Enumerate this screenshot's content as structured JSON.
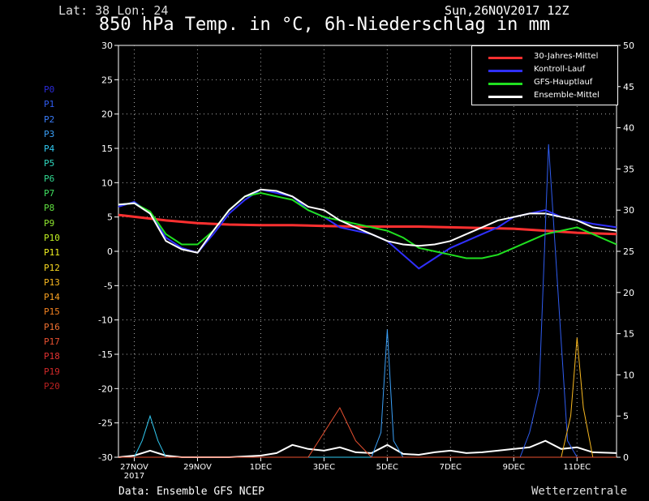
{
  "header": {
    "location": "Lat: 38 Lon: 24",
    "datetime": "Sun,26NOV2017 12Z",
    "title": "850 hPa Temp. in °C, 6h-Niederschlag in mm"
  },
  "footer": {
    "data_source": "Data: Ensemble GFS NCEP",
    "brand": "Wetterzentrale"
  },
  "members": [
    {
      "label": "P0",
      "color": "#2a2ad8"
    },
    {
      "label": "P1",
      "color": "#2f5cf0"
    },
    {
      "label": "P2",
      "color": "#3a7cf8"
    },
    {
      "label": "P3",
      "color": "#3aa0f8"
    },
    {
      "label": "P4",
      "color": "#30c8f0"
    },
    {
      "label": "P5",
      "color": "#30d8c0"
    },
    {
      "label": "P6",
      "color": "#30d890"
    },
    {
      "label": "P7",
      "color": "#40e060"
    },
    {
      "label": "P8",
      "color": "#60e040"
    },
    {
      "label": "P9",
      "color": "#90e830"
    },
    {
      "label": "P10",
      "color": "#c0f020"
    },
    {
      "label": "P11",
      "color": "#f0f020"
    },
    {
      "label": "P12",
      "color": "#f8d820"
    },
    {
      "label": "P13",
      "color": "#f8b820"
    },
    {
      "label": "P14",
      "color": "#f8a020"
    },
    {
      "label": "P15",
      "color": "#f08020"
    },
    {
      "label": "P16",
      "color": "#f07030"
    },
    {
      "label": "P17",
      "color": "#e85030"
    },
    {
      "label": "P18",
      "color": "#e03030"
    },
    {
      "label": "P19",
      "color": "#d02828"
    },
    {
      "label": "P20",
      "color": "#b82020"
    }
  ],
  "chart_data": {
    "type": "line",
    "title": "850 hPa Temp. in °C, 6h-Niederschlag in mm",
    "x_ticks": [
      {
        "day": 1,
        "label": "27NOV",
        "label2": "2017"
      },
      {
        "day": 3,
        "label": "29NOV"
      },
      {
        "day": 5,
        "label": "1DEC"
      },
      {
        "day": 7,
        "label": "3DEC"
      },
      {
        "day": 9,
        "label": "5DEC"
      },
      {
        "day": 11,
        "label": "7DEC"
      },
      {
        "day": 13,
        "label": "9DEC"
      },
      {
        "day": 15,
        "label": "11DEC"
      }
    ],
    "xlim": [
      0.5,
      16.25
    ],
    "y_left": {
      "unit": "°C",
      "ylim": [
        -30,
        30
      ],
      "ticks": [
        30,
        25,
        20,
        15,
        10,
        5,
        0,
        -5,
        -10,
        -15,
        -20,
        -25,
        -30
      ]
    },
    "y_right": {
      "unit": "mm",
      "ylim": [
        0,
        50
      ],
      "ticks": [
        50,
        45,
        40,
        35,
        30,
        25,
        20,
        15,
        10,
        5,
        0
      ]
    },
    "grid": true,
    "legend_position": "top-right",
    "series": [
      {
        "name": "30-Jahres-Mittel",
        "axis": "left",
        "color": "#ff3030",
        "x": [
          0.5,
          2,
          3,
          4,
          5,
          6,
          7,
          8,
          9,
          10,
          11,
          12,
          13,
          14,
          15,
          16.25
        ],
        "y": [
          5.3,
          4.5,
          4.1,
          3.9,
          3.8,
          3.8,
          3.7,
          3.6,
          3.6,
          3.6,
          3.5,
          3.4,
          3.3,
          3.0,
          2.7,
          2.5
        ]
      },
      {
        "name": "Kontroll-Lauf",
        "axis": "left",
        "color": "#3030ff",
        "x": [
          0.5,
          1,
          1.5,
          2,
          2.5,
          3,
          3.5,
          4,
          4.5,
          5,
          5.5,
          6,
          6.5,
          7,
          7.5,
          8,
          8.5,
          9,
          9.5,
          10,
          10.5,
          11,
          11.5,
          12,
          12.5,
          13,
          13.5,
          14,
          14.5,
          15,
          15.5,
          16.25
        ],
        "y": [
          6.5,
          7.2,
          5.5,
          2.0,
          0.5,
          -0.2,
          2.5,
          5.5,
          7.5,
          9.0,
          8.5,
          8.0,
          6.0,
          5.0,
          3.5,
          3.0,
          2.5,
          1.5,
          -0.5,
          -2.5,
          -1.0,
          0.5,
          1.5,
          2.5,
          3.5,
          5.0,
          5.5,
          6.0,
          5.0,
          4.5,
          4.0,
          3.5
        ]
      },
      {
        "name": "GFS-Hauptlauf",
        "axis": "left",
        "color": "#20e020",
        "x": [
          0.5,
          1,
          1.5,
          2,
          2.5,
          3,
          3.5,
          4,
          4.5,
          5,
          5.5,
          6,
          6.5,
          7,
          7.5,
          8,
          8.5,
          9,
          9.5,
          10,
          10.5,
          11,
          11.5,
          12,
          12.5,
          13,
          13.5,
          14,
          14.5,
          15,
          15.5,
          16.25
        ],
        "y": [
          6.8,
          7.0,
          5.8,
          2.5,
          1.0,
          1.0,
          3.0,
          6.0,
          8.0,
          8.5,
          8.0,
          7.5,
          6.0,
          5.0,
          4.5,
          4.0,
          3.5,
          3.0,
          2.0,
          0.5,
          0.0,
          -0.5,
          -1.0,
          -1.0,
          -0.5,
          0.5,
          1.5,
          2.5,
          3.0,
          3.5,
          2.5,
          1.0
        ]
      },
      {
        "name": "Ensemble-Mittel",
        "axis": "left",
        "color": "#ffffff",
        "x": [
          0.5,
          1,
          1.5,
          2,
          2.5,
          3,
          3.5,
          4,
          4.5,
          5,
          5.5,
          6,
          6.5,
          7,
          7.5,
          8,
          8.5,
          9,
          9.5,
          10,
          10.5,
          11,
          11.5,
          12,
          12.5,
          13,
          13.5,
          14,
          14.5,
          15,
          15.5,
          16.25
        ],
        "y": [
          6.8,
          7.0,
          5.5,
          1.5,
          0.3,
          -0.2,
          3.0,
          6.0,
          8.0,
          9.0,
          8.8,
          8.0,
          6.5,
          6.0,
          4.5,
          3.5,
          2.5,
          1.5,
          1.0,
          0.8,
          1.0,
          1.5,
          2.5,
          3.5,
          4.5,
          5.0,
          5.5,
          5.5,
          5.0,
          4.5,
          3.5,
          3.0
        ]
      }
    ],
    "precipitation_series": [
      {
        "name": "Ensemble-Mittel",
        "axis": "right",
        "color": "#ffffff",
        "x": [
          0.5,
          1,
          1.5,
          2,
          2.5,
          4,
          5,
          5.5,
          6,
          6.5,
          7,
          7.5,
          8,
          8.5,
          9,
          9.5,
          10,
          10.5,
          11,
          11.5,
          12,
          12.5,
          13,
          13.5,
          14,
          14.5,
          15,
          15.5,
          16.25
        ],
        "y": [
          0,
          0.2,
          0.8,
          0.2,
          0,
          0,
          0.2,
          0.5,
          1.5,
          1.0,
          0.8,
          1.2,
          0.6,
          0.5,
          1.5,
          0.4,
          0.3,
          0.6,
          0.8,
          0.5,
          0.6,
          0.8,
          1.0,
          1.2,
          2.0,
          1.0,
          1.2,
          0.6,
          0.5
        ]
      },
      {
        "name": "P3",
        "axis": "right",
        "color": "#3aa0f8",
        "x": [
          0.5,
          8.5,
          8.8,
          9,
          9.2,
          9.5,
          16.25
        ],
        "y": [
          0,
          0,
          3,
          15.5,
          2,
          0,
          0
        ]
      },
      {
        "name": "P1",
        "axis": "right",
        "color": "#2f5cf0",
        "x": [
          0.5,
          13.2,
          13.5,
          13.8,
          14.1,
          14.4,
          14.7,
          15,
          16.25
        ],
        "y": [
          0,
          0,
          3,
          8,
          38,
          20,
          2,
          0,
          0
        ]
      },
      {
        "name": "P13",
        "axis": "right",
        "color": "#f8b820",
        "x": [
          0.5,
          14.5,
          14.8,
          15,
          15.2,
          15.5,
          16.25
        ],
        "y": [
          0,
          0,
          5,
          14.5,
          6,
          0,
          0
        ]
      },
      {
        "name": "P4",
        "axis": "right",
        "color": "#30c8f0",
        "x": [
          0.5,
          1,
          1.25,
          1.5,
          1.75,
          2,
          16.25
        ],
        "y": [
          0,
          0,
          2,
          5,
          2,
          0,
          0
        ]
      },
      {
        "name": "P17",
        "axis": "right",
        "color": "#e85030",
        "x": [
          0.5,
          6.5,
          7,
          7.5,
          8,
          8.5,
          16.25
        ],
        "y": [
          0,
          0,
          3,
          6,
          2,
          0,
          0
        ]
      }
    ]
  }
}
